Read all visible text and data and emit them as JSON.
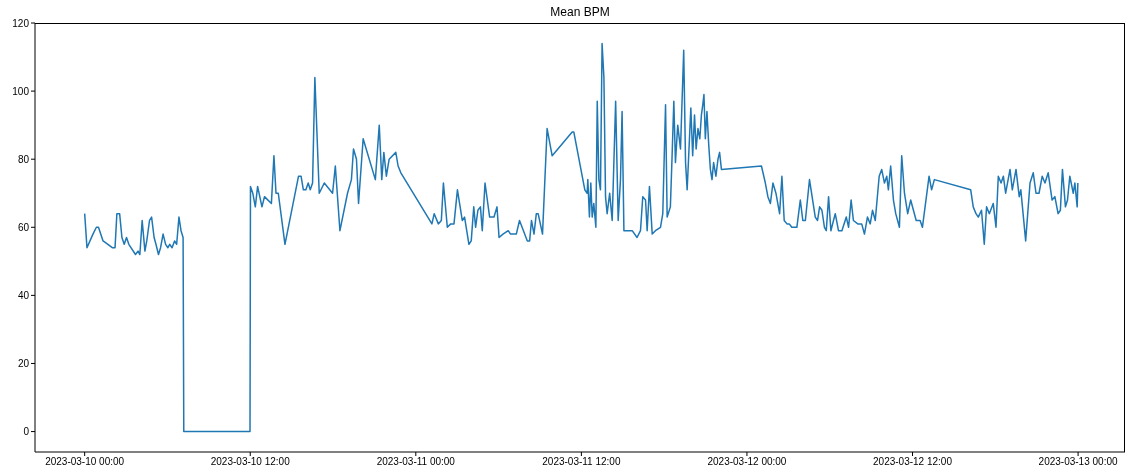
{
  "chart_data": {
    "type": "line",
    "title": "Mean BPM",
    "color": "#1f77b4",
    "x": [
      "2023-03-10T00:00",
      "2023-03-10T00:10",
      "2023-03-10T00:36",
      "2023-03-10T00:51",
      "2023-03-10T01:00",
      "2023-03-10T01:20",
      "2023-03-10T01:41",
      "2023-03-10T02:00",
      "2023-03-10T02:12",
      "2023-03-10T02:20",
      "2023-03-10T02:32",
      "2023-03-10T02:42",
      "2023-03-10T02:52",
      "2023-03-10T03:02",
      "2023-03-10T03:12",
      "2023-03-10T03:41",
      "2023-03-10T03:52",
      "2023-03-10T04:00",
      "2023-03-10T04:10",
      "2023-03-10T04:22",
      "2023-03-10T04:30",
      "2023-03-10T04:42",
      "2023-03-10T04:51",
      "2023-03-10T05:02",
      "2023-03-10T05:10",
      "2023-03-10T05:21",
      "2023-03-10T05:30",
      "2023-03-10T05:41",
      "2023-03-10T05:52",
      "2023-03-10T06:02",
      "2023-03-10T06:10",
      "2023-03-10T06:20",
      "2023-03-10T06:31",
      "2023-03-10T06:40",
      "2023-03-10T06:50",
      "2023-03-10T06:59",
      "2023-03-10T07:08",
      "2023-03-10T07:11",
      "2023-03-10T11:59",
      "2023-03-10T12:01",
      "2023-03-10T12:11",
      "2023-03-10T12:22",
      "2023-03-10T12:32",
      "2023-03-10T12:51",
      "2023-03-10T13:02",
      "2023-03-10T13:32",
      "2023-03-10T13:43",
      "2023-03-10T13:52",
      "2023-03-10T14:02",
      "2023-03-10T14:31",
      "2023-03-10T15:30",
      "2023-03-10T15:41",
      "2023-03-10T15:51",
      "2023-03-10T16:02",
      "2023-03-10T16:12",
      "2023-03-10T16:21",
      "2023-03-10T16:31",
      "2023-03-10T16:41",
      "2023-03-10T17:00",
      "2023-03-10T17:22",
      "2023-03-10T17:58",
      "2023-03-10T18:10",
      "2023-03-10T18:30",
      "2023-03-10T19:03",
      "2023-03-10T19:20",
      "2023-03-10T19:29",
      "2023-03-10T19:42",
      "2023-03-10T19:51",
      "2023-03-10T20:11",
      "2023-03-10T21:04",
      "2023-03-10T21:21",
      "2023-03-10T21:32",
      "2023-03-10T21:41",
      "2023-03-10T21:52",
      "2023-03-10T22:04",
      "2023-03-10T22:33",
      "2023-03-10T22:43",
      "2023-03-10T22:55",
      "2023-03-11T01:10",
      "2023-03-11T01:20",
      "2023-03-11T01:38",
      "2023-03-11T01:51",
      "2023-03-11T02:00",
      "2023-03-11T02:17",
      "2023-03-11T02:32",
      "2023-03-11T02:46",
      "2023-03-11T03:01",
      "2023-03-11T03:22",
      "2023-03-11T03:32",
      "2023-03-11T03:51",
      "2023-03-11T04:01",
      "2023-03-11T04:12",
      "2023-03-11T04:20",
      "2023-03-11T04:30",
      "2023-03-11T04:41",
      "2023-03-11T04:49",
      "2023-03-11T05:01",
      "2023-03-11T05:21",
      "2023-03-11T05:40",
      "2023-03-11T05:53",
      "2023-03-11T06:02",
      "2023-03-11T06:19",
      "2023-03-11T06:42",
      "2023-03-11T06:52",
      "2023-03-11T07:17",
      "2023-03-11T07:31",
      "2023-03-11T08:05",
      "2023-03-11T08:15",
      "2023-03-11T08:23",
      "2023-03-11T08:34",
      "2023-03-11T08:44",
      "2023-03-11T08:52",
      "2023-03-11T09:11",
      "2023-03-11T09:31",
      "2023-03-11T09:53",
      "2023-03-11T11:20",
      "2023-03-11T11:27",
      "2023-03-11T12:15",
      "2023-03-11T12:25",
      "2023-03-11T12:28",
      "2023-03-11T12:35",
      "2023-03-11T12:41",
      "2023-03-11T12:47",
      "2023-03-11T12:54",
      "2023-03-11T13:03",
      "2023-03-11T13:09",
      "2023-03-11T13:16",
      "2023-03-11T13:23",
      "2023-03-11T13:30",
      "2023-03-11T13:38",
      "2023-03-11T13:45",
      "2023-03-11T13:52",
      "2023-03-11T14:03",
      "2023-03-11T14:14",
      "2023-03-11T14:29",
      "2023-03-11T14:40",
      "2023-03-11T14:50",
      "2023-03-11T14:57",
      "2023-03-11T15:05",
      "2023-03-11T15:26",
      "2023-03-11T15:41",
      "2023-03-11T16:02",
      "2023-03-11T16:17",
      "2023-03-11T16:27",
      "2023-03-11T16:39",
      "2023-03-11T16:46",
      "2023-03-11T16:56",
      "2023-03-11T17:08",
      "2023-03-11T17:22",
      "2023-03-11T17:44",
      "2023-03-11T17:54",
      "2023-03-11T18:06",
      "2023-03-11T18:13",
      "2023-03-11T18:27",
      "2023-03-11T18:34",
      "2023-03-11T18:42",
      "2023-03-11T18:49",
      "2023-03-11T18:59",
      "2023-03-11T19:11",
      "2023-03-11T19:25",
      "2023-03-11T19:33",
      "2023-03-11T19:40",
      "2023-03-11T19:50",
      "2023-03-11T19:56",
      "2023-03-11T20:04",
      "2023-03-11T20:12",
      "2023-03-11T20:19",
      "2023-03-11T20:27",
      "2023-03-11T20:35",
      "2023-03-11T20:42",
      "2023-03-11T20:48",
      "2023-03-11T20:53",
      "2023-03-11T20:59",
      "2023-03-11T21:06",
      "2023-03-11T21:14",
      "2023-03-11T21:21",
      "2023-03-11T21:28",
      "2023-03-11T21:35",
      "2023-03-11T21:45",
      "2023-03-11T21:54",
      "2023-03-11T22:01",
      "2023-03-11T22:09",
      "2023-03-12T01:03",
      "2023-03-12T01:20",
      "2023-03-12T01:31",
      "2023-03-12T01:42",
      "2023-03-12T01:53",
      "2023-03-12T02:06",
      "2023-03-12T02:22",
      "2023-03-12T02:32",
      "2023-03-12T02:42",
      "2023-03-12T02:54",
      "2023-03-12T03:04",
      "2023-03-12T03:15",
      "2023-03-12T03:37",
      "2023-03-12T03:52",
      "2023-03-12T04:03",
      "2023-03-12T04:14",
      "2023-03-12T04:32",
      "2023-03-12T04:57",
      "2023-03-12T05:07",
      "2023-03-12T05:16",
      "2023-03-12T05:26",
      "2023-03-12T05:37",
      "2023-03-12T05:45",
      "2023-03-12T05:55",
      "2023-03-12T06:05",
      "2023-03-12T06:24",
      "2023-03-12T06:38",
      "2023-03-12T06:53",
      "2023-03-12T07:12",
      "2023-03-12T07:22",
      "2023-03-12T07:33",
      "2023-03-12T07:43",
      "2023-03-12T08:02",
      "2023-03-12T08:19",
      "2023-03-12T08:31",
      "2023-03-12T08:44",
      "2023-03-12T08:56",
      "2023-03-12T09:06",
      "2023-03-12T09:18",
      "2023-03-12T09:35",
      "2023-03-12T09:46",
      "2023-03-12T09:58",
      "2023-03-12T10:08",
      "2023-03-12T10:15",
      "2023-03-12T10:25",
      "2023-03-12T10:37",
      "2023-03-12T10:47",
      "2023-03-12T11:03",
      "2023-03-12T11:13",
      "2023-03-12T11:25",
      "2023-03-12T11:39",
      "2023-03-12T11:52",
      "2023-03-12T12:04",
      "2023-03-12T12:16",
      "2023-03-12T12:33",
      "2023-03-12T12:43",
      "2023-03-12T13:12",
      "2023-03-12T13:23",
      "2023-03-12T13:35",
      "2023-03-12T16:13",
      "2023-03-12T16:24",
      "2023-03-12T16:36",
      "2023-03-12T16:46",
      "2023-03-12T17:00",
      "2023-03-12T17:12",
      "2023-03-12T17:22",
      "2023-03-12T17:34",
      "2023-03-12T17:51",
      "2023-03-12T18:03",
      "2023-03-12T18:13",
      "2023-03-12T18:25",
      "2023-03-12T18:35",
      "2023-03-12T18:45",
      "2023-03-12T19:04",
      "2023-03-12T19:14",
      "2023-03-12T19:30",
      "2023-03-12T19:44",
      "2023-03-12T19:51",
      "2023-03-12T20:12",
      "2023-03-12T20:31",
      "2023-03-12T20:45",
      "2023-03-12T20:57",
      "2023-03-12T21:10",
      "2023-03-12T21:24",
      "2023-03-12T21:36",
      "2023-03-12T21:50",
      "2023-03-12T22:07",
      "2023-03-12T22:19",
      "2023-03-12T22:33",
      "2023-03-12T22:43",
      "2023-03-12T22:52",
      "2023-03-12T23:05",
      "2023-03-12T23:14",
      "2023-03-12T23:24",
      "2023-03-12T23:39",
      "2023-03-12T23:46",
      "2023-03-12T23:56",
      "2023-03-12T23:59"
    ],
    "values": [
      64,
      54,
      58,
      60,
      60,
      56,
      55,
      54,
      54,
      64,
      64,
      57,
      55,
      57,
      55,
      52,
      53,
      52,
      62,
      53,
      56,
      62,
      63,
      57,
      55,
      52,
      54,
      58,
      55,
      54,
      55,
      54,
      56,
      55,
      63,
      59,
      57,
      0,
      0,
      72,
      70,
      66,
      72,
      66,
      69,
      67,
      81,
      70,
      70,
      55,
      75,
      75,
      71,
      71,
      73,
      71,
      73,
      104,
      70,
      73,
      70,
      78,
      59,
      70,
      74,
      83,
      80,
      67,
      86,
      74,
      90,
      74,
      82,
      75,
      80,
      82,
      78,
      76,
      61,
      64,
      61,
      62,
      73,
      60,
      61,
      61,
      71,
      62,
      63,
      55,
      56,
      66,
      60,
      65,
      66,
      59,
      73,
      63,
      63,
      66,
      57,
      58,
      59,
      58,
      58,
      62,
      56,
      56,
      62,
      58,
      64,
      64,
      58,
      89,
      81,
      88,
      88,
      71,
      70,
      74,
      63,
      73,
      63,
      67,
      60,
      97,
      74,
      71,
      114,
      104,
      69,
      64,
      70,
      62,
      97,
      62,
      74,
      94,
      59,
      59,
      59,
      57,
      59,
      69,
      68,
      59,
      72,
      58,
      59,
      60,
      64,
      96,
      63,
      66,
      80,
      97,
      79,
      90,
      83,
      112,
      79,
      71,
      86,
      95,
      81,
      93,
      83,
      89,
      86,
      93,
      96,
      99,
      86,
      94,
      84,
      77,
      74,
      79,
      75,
      80,
      82,
      77,
      78,
      73,
      69,
      67,
      73,
      70,
      64,
      75,
      62,
      61,
      61,
      60,
      60,
      68,
      62,
      62,
      74,
      63,
      62,
      66,
      65,
      60,
      59,
      69,
      59,
      64,
      59,
      59,
      63,
      60,
      68,
      62,
      61,
      61,
      58,
      63,
      61,
      65,
      62,
      75,
      77,
      73,
      75,
      71,
      78,
      68,
      64,
      60,
      81,
      70,
      64,
      68,
      65,
      62,
      62,
      60,
      75,
      71,
      74,
      71,
      66,
      64,
      63,
      65,
      55,
      66,
      64,
      67,
      60,
      75,
      73,
      75,
      70,
      77,
      71,
      77,
      69,
      71,
      56,
      73,
      76,
      70,
      70,
      75,
      73,
      76,
      68,
      69,
      64,
      65,
      77,
      66,
      68,
      75,
      70,
      73,
      66,
      73
    ],
    "xlim": [
      "2023-03-09T20:24",
      "2023-03-13T03:24"
    ],
    "xticks": [
      {
        "value": "2023-03-10T00:00",
        "label": "2023-03-10 00:00"
      },
      {
        "value": "2023-03-10T12:00",
        "label": "2023-03-10 12:00"
      },
      {
        "value": "2023-03-11T00:00",
        "label": "2023-03-11 00:00"
      },
      {
        "value": "2023-03-11T12:00",
        "label": "2023-03-11 12:00"
      },
      {
        "value": "2023-03-12T00:00",
        "label": "2023-03-12 00:00"
      },
      {
        "value": "2023-03-12T12:00",
        "label": "2023-03-12 12:00"
      },
      {
        "value": "2023-03-13T00:00",
        "label": "2023-03-13 00:00"
      }
    ],
    "ylim": [
      -6,
      120
    ],
    "yticks": [
      0,
      20,
      40,
      60,
      80,
      100,
      120
    ]
  }
}
